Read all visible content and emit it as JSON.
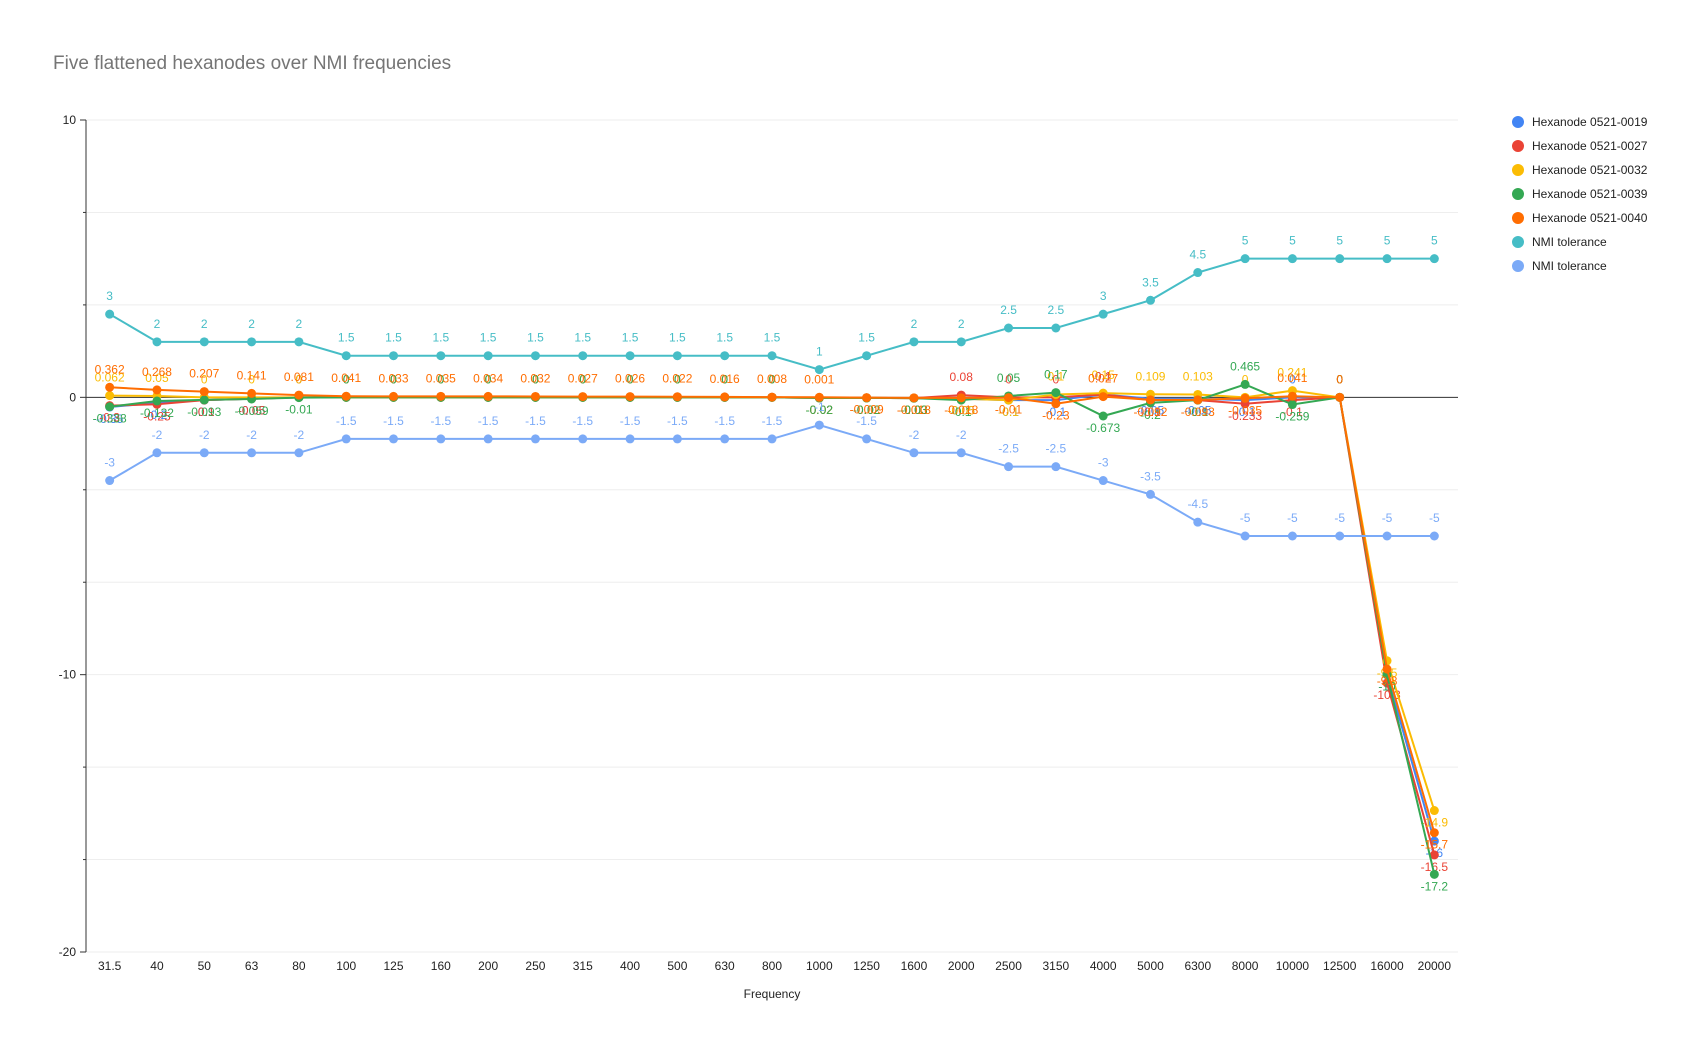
{
  "chart_data": {
    "type": "line",
    "title": "Five flattened hexanodes over NMI frequencies",
    "xlabel": "Frequency",
    "ylabel": "",
    "ylim": [
      -20,
      10
    ],
    "yticks": [
      "10",
      "0",
      "-10",
      "-20"
    ],
    "grid": true,
    "legend_position": "right",
    "categories": [
      "31.5",
      "40",
      "50",
      "63",
      "80",
      "100",
      "125",
      "160",
      "200",
      "250",
      "315",
      "400",
      "500",
      "630",
      "800",
      "1000",
      "1250",
      "1600",
      "2000",
      "2500",
      "3150",
      "4000",
      "5000",
      "6300",
      "8000",
      "10000",
      "12500",
      "16000",
      "20000"
    ],
    "series": [
      {
        "name": "Hexanode 0521-0019",
        "color": "#4285F4",
        "values": [
          -0.35,
          -0.2,
          -0.1,
          -0.05,
          0,
          0,
          0,
          0,
          0,
          0,
          0,
          0,
          0,
          0,
          0,
          -0.02,
          -0.02,
          -0.03,
          -0.05,
          -0.1,
          -0.1,
          0.1,
          -0.05,
          -0.05,
          -0.1,
          0,
          0,
          -10,
          -16
        ]
      },
      {
        "name": "Hexanode 0521-0027",
        "color": "#EA4335",
        "values": [
          -0.3,
          -0.25,
          -0.1,
          -0.05,
          0,
          0,
          0,
          0,
          0,
          0,
          0,
          0,
          0,
          0,
          0,
          -0.02,
          -0.02,
          -0.03,
          0.08,
          0,
          0,
          0.1,
          -0.1,
          -0.1,
          -0.233,
          -0.1,
          0,
          -10.3,
          -16.5
        ]
      },
      {
        "name": "Hexanode 0521-0032",
        "color": "#FBBC04",
        "values": [
          0.062,
          0.05,
          0,
          0,
          0,
          0,
          0,
          0,
          0,
          0,
          0,
          0,
          0,
          0,
          0,
          -0.02,
          -0.02,
          -0.03,
          -0.05,
          -0.1,
          0.1,
          0.15,
          0.109,
          0.103,
          0,
          0.241,
          0,
          -9.5,
          -14.9
        ]
      },
      {
        "name": "Hexanode 0521-0039",
        "color": "#34A853",
        "values": [
          -0.338,
          -0.132,
          -0.093,
          -0.059,
          -0.01,
          0,
          0,
          0,
          0,
          0,
          0,
          0,
          0,
          0,
          0,
          -0.02,
          -0.02,
          -0.03,
          -0.1,
          0.05,
          0.17,
          -0.673,
          -0.2,
          -0.1,
          0.465,
          -0.259,
          0,
          -10,
          -17.2
        ]
      },
      {
        "name": "Hexanode 0521-0040",
        "color": "#FF6D01",
        "values": [
          0.362,
          0.268,
          0.207,
          0.141,
          0.081,
          0.041,
          0.033,
          0.035,
          0.034,
          0.032,
          0.027,
          0.026,
          0.022,
          0.016,
          0.008,
          0.001,
          -0.009,
          -0.018,
          -0.018,
          -0.01,
          -0.23,
          0.027,
          -0.092,
          -0.093,
          -0.035,
          0.041,
          0,
          -9.8,
          -15.7
        ]
      },
      {
        "name": "NMI tolerance",
        "color": "#46BDC6",
        "values": [
          3,
          2,
          2,
          2,
          2,
          1.5,
          1.5,
          1.5,
          1.5,
          1.5,
          1.5,
          1.5,
          1.5,
          1.5,
          1.5,
          1,
          1.5,
          2,
          2,
          2.5,
          2.5,
          3,
          3.5,
          4.5,
          5,
          5,
          5,
          5,
          5
        ]
      },
      {
        "name": "NMI tolerance",
        "color": "#7BAAF7",
        "values": [
          -3,
          -2,
          -2,
          -2,
          -2,
          -1.5,
          -1.5,
          -1.5,
          -1.5,
          -1.5,
          -1.5,
          -1.5,
          -1.5,
          -1.5,
          -1.5,
          -1,
          -1.5,
          -2,
          -2,
          -2.5,
          -2.5,
          -3,
          -3.5,
          -4.5,
          -5,
          -5,
          -5,
          -5,
          -5
        ]
      }
    ]
  }
}
